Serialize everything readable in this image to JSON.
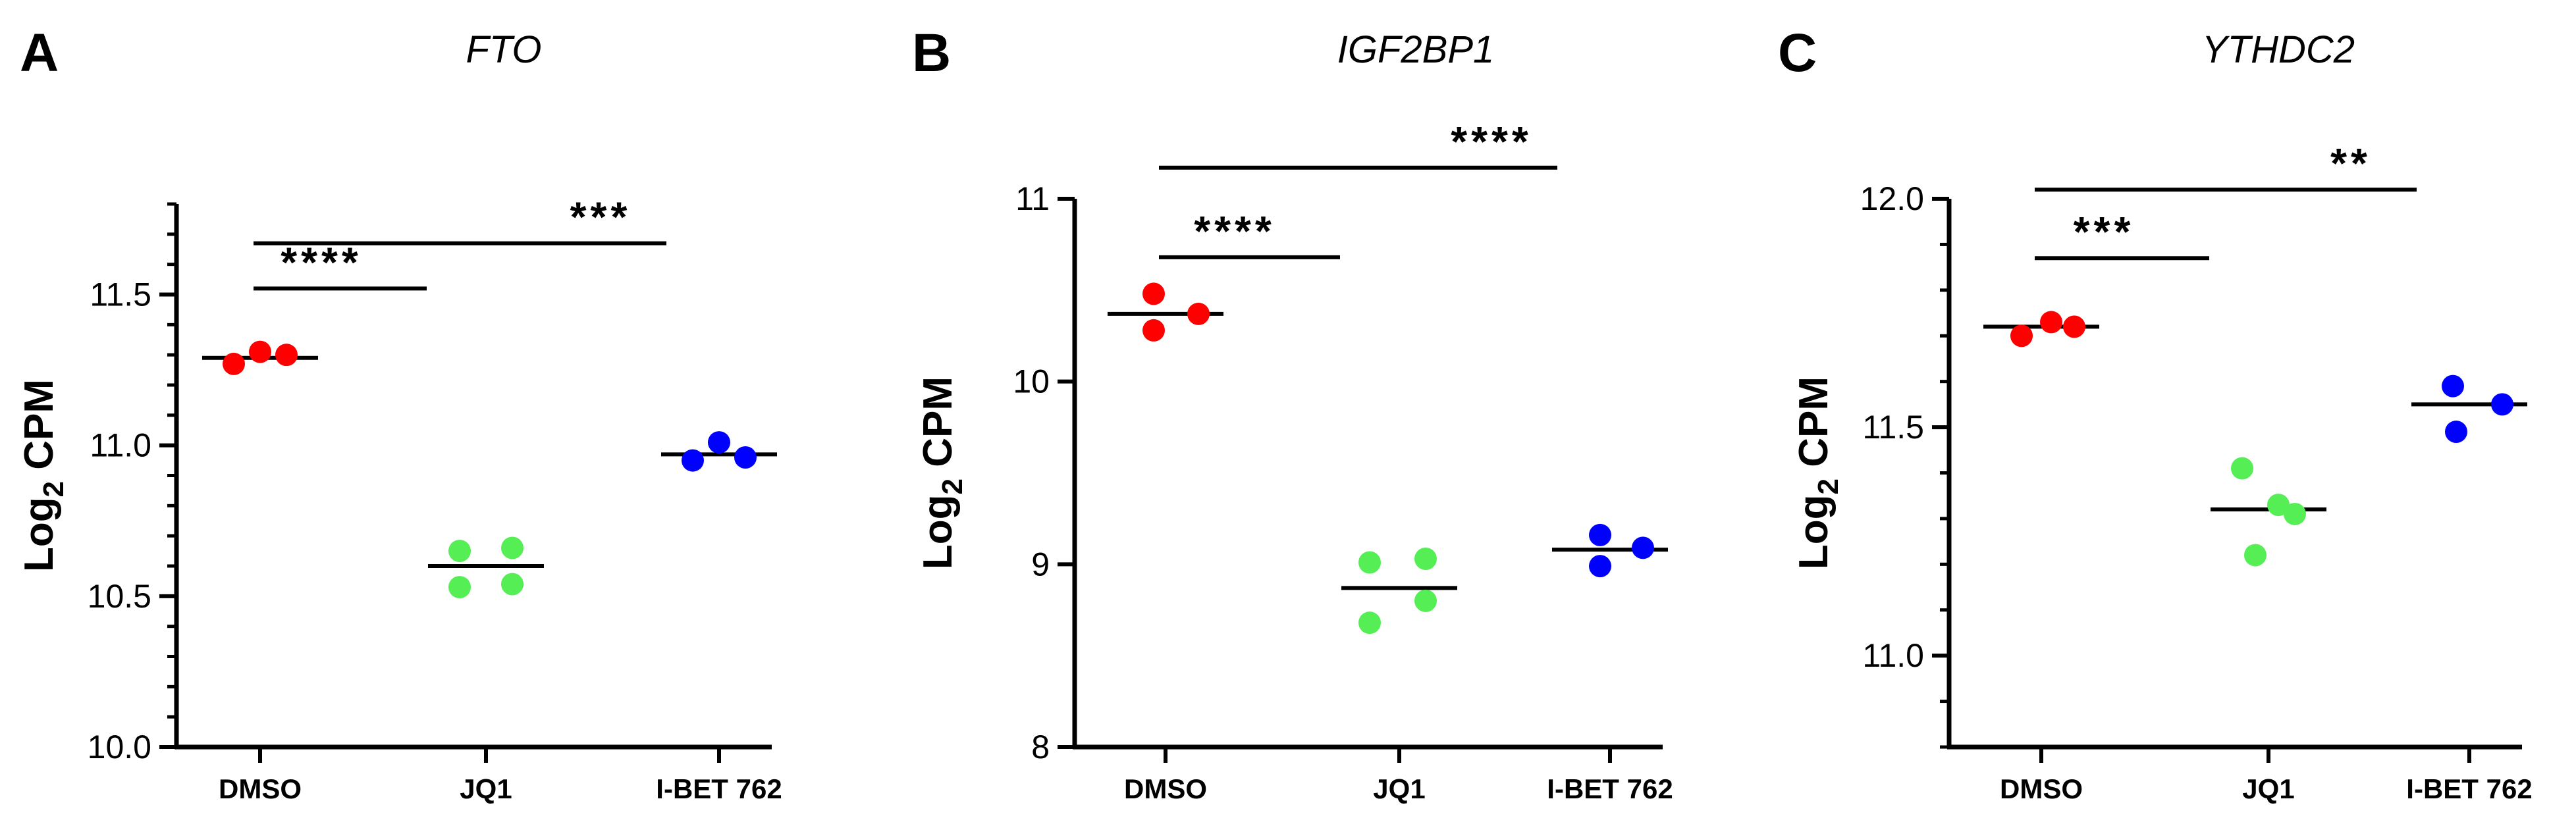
{
  "colors": {
    "DMSO": "#ff0000",
    "JQ1": "#55ee55",
    "I-BET 762": "#0000ff",
    "axis": "#000000"
  },
  "chart_data": [
    {
      "type": "scatter",
      "panel": "A",
      "title": "FTO",
      "ylabel": "Log2 CPM",
      "ylabel_parts": {
        "base": "Log",
        "sub": "2",
        "rest": " CPM"
      },
      "categories": [
        "DMSO",
        "JQ1",
        "I-BET 762"
      ],
      "ylim": [
        10.0,
        11.8
      ],
      "yticks": [
        10.0,
        10.5,
        11.0,
        11.5
      ],
      "ytick_labels": [
        "10.0",
        "10.5",
        "11.0",
        "11.5"
      ],
      "minor_ticks": true,
      "points": [
        {
          "category": "DMSO",
          "y": 11.27
        },
        {
          "category": "DMSO",
          "y": 11.31
        },
        {
          "category": "DMSO",
          "y": 11.3
        },
        {
          "category": "JQ1",
          "y": 10.65
        },
        {
          "category": "JQ1",
          "y": 10.66
        },
        {
          "category": "JQ1",
          "y": 10.53
        },
        {
          "category": "JQ1",
          "y": 10.54
        },
        {
          "category": "I-BET 762",
          "y": 10.95
        },
        {
          "category": "I-BET 762",
          "y": 11.01
        },
        {
          "category": "I-BET 762",
          "y": 10.96
        }
      ],
      "medians": [
        {
          "category": "DMSO",
          "y": 11.29
        },
        {
          "category": "JQ1",
          "y": 10.6
        },
        {
          "category": "I-BET 762",
          "y": 10.97
        }
      ],
      "significance": [
        {
          "from": "DMSO",
          "to": "JQ1",
          "y": 11.52,
          "label": "****"
        },
        {
          "from": "DMSO",
          "to": "I-BET 762",
          "y": 11.67,
          "label": "***"
        }
      ]
    },
    {
      "type": "scatter",
      "panel": "B",
      "title": "IGF2BP1",
      "ylabel": "Log2 CPM",
      "ylabel_parts": {
        "base": "Log",
        "sub": "2",
        "rest": " CPM"
      },
      "categories": [
        "DMSO",
        "JQ1",
        "I-BET 762"
      ],
      "ylim": [
        8,
        11
      ],
      "yticks": [
        8,
        9,
        10,
        11
      ],
      "ytick_labels": [
        "8",
        "9",
        "10",
        "11"
      ],
      "minor_ticks": false,
      "points": [
        {
          "category": "DMSO",
          "y": 10.48
        },
        {
          "category": "DMSO",
          "y": 10.28
        },
        {
          "category": "DMSO",
          "y": 10.37
        },
        {
          "category": "JQ1",
          "y": 9.01
        },
        {
          "category": "JQ1",
          "y": 9.03
        },
        {
          "category": "JQ1",
          "y": 8.68
        },
        {
          "category": "JQ1",
          "y": 8.8
        },
        {
          "category": "I-BET 762",
          "y": 9.16
        },
        {
          "category": "I-BET 762",
          "y": 8.99
        },
        {
          "category": "I-BET 762",
          "y": 9.09
        }
      ],
      "medians": [
        {
          "category": "DMSO",
          "y": 10.37
        },
        {
          "category": "JQ1",
          "y": 8.87
        },
        {
          "category": "I-BET 762",
          "y": 9.08
        }
      ],
      "significance": [
        {
          "from": "DMSO",
          "to": "JQ1",
          "y": 10.68,
          "label": "****"
        },
        {
          "from": "DMSO",
          "to": "I-BET 762",
          "y": 11.17,
          "label": "****"
        }
      ]
    },
    {
      "type": "scatter",
      "panel": "C",
      "title": "YTHDC2",
      "ylabel": "Log2 CPM",
      "ylabel_parts": {
        "base": "Log",
        "sub": "2",
        "rest": " CPM"
      },
      "categories": [
        "DMSO",
        "JQ1",
        "I-BET 762"
      ],
      "ylim": [
        10.8,
        12.0
      ],
      "yticks": [
        11.0,
        11.5,
        12.0
      ],
      "ytick_labels": [
        "11.0",
        "11.5",
        "12.0"
      ],
      "minor_ticks": true,
      "points": [
        {
          "category": "DMSO",
          "y": 11.7
        },
        {
          "category": "DMSO",
          "y": 11.73
        },
        {
          "category": "DMSO",
          "y": 11.72
        },
        {
          "category": "JQ1",
          "y": 11.41
        },
        {
          "category": "JQ1",
          "y": 11.33
        },
        {
          "category": "JQ1",
          "y": 11.22
        },
        {
          "category": "JQ1",
          "y": 11.31
        },
        {
          "category": "I-BET 762",
          "y": 11.59
        },
        {
          "category": "I-BET 762",
          "y": 11.49
        },
        {
          "category": "I-BET 762",
          "y": 11.55
        }
      ],
      "medians": [
        {
          "category": "DMSO",
          "y": 11.72
        },
        {
          "category": "JQ1",
          "y": 11.32
        },
        {
          "category": "I-BET 762",
          "y": 11.55
        }
      ],
      "significance": [
        {
          "from": "DMSO",
          "to": "JQ1",
          "y": 11.87,
          "label": "***"
        },
        {
          "from": "DMSO",
          "to": "I-BET 762",
          "y": 12.02,
          "label": "**"
        }
      ]
    }
  ]
}
